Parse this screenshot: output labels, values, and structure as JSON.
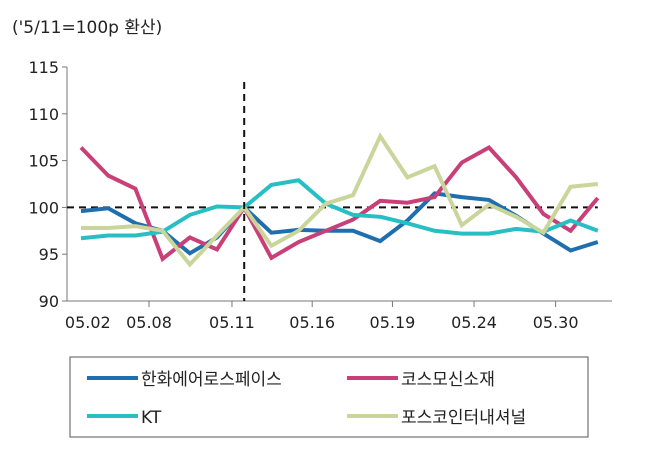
{
  "chart_data": {
    "type": "line",
    "subtitle": "('5/11=100p 환산)",
    "ylim": [
      90,
      115
    ],
    "y_ticks": [
      "90",
      "95",
      "100",
      "105",
      "110",
      "115"
    ],
    "x_tick_labels": [
      "05.02",
      "05.08",
      "05.11",
      "05.16",
      "05.19",
      "05.24",
      "05.30"
    ],
    "reference_value": 100,
    "reference_index": 6,
    "grid": false,
    "legend_position": "bottom",
    "series": [
      {
        "name": "한화에어로스페이스",
        "color": "#1f6fae",
        "values": [
          99.6,
          99.9,
          98.3,
          97.5,
          95.1,
          96.8,
          100,
          97.3,
          97.6,
          97.5,
          97.5,
          96.4,
          98.6,
          101.5,
          101.1,
          100.8,
          99.1,
          97.2,
          95.4,
          96.3
        ]
      },
      {
        "name": "코스모신소재",
        "color": "#c94079",
        "values": [
          106.4,
          103.4,
          102,
          94.5,
          96.8,
          95.5,
          100,
          94.6,
          96.3,
          97.5,
          98.7,
          100.7,
          100.5,
          101.1,
          104.8,
          106.4,
          103.2,
          99.3,
          97.5,
          101
        ]
      },
      {
        "name": "KT",
        "color": "#27bfc4",
        "values": [
          96.7,
          97,
          97,
          97.4,
          99.2,
          100.1,
          100,
          102.4,
          102.9,
          100.4,
          99.2,
          99,
          98.3,
          97.5,
          97.2,
          97.2,
          97.7,
          97.4,
          98.6,
          97.5
        ]
      },
      {
        "name": "포스코인터내셔널",
        "color": "#c9d59a",
        "values": [
          97.8,
          97.8,
          98,
          97.5,
          93.9,
          97,
          100,
          95.9,
          97.5,
          100.4,
          101.3,
          107.6,
          103.2,
          104.4,
          98.1,
          100.3,
          99,
          97.3,
          102.2,
          102.5
        ]
      }
    ]
  }
}
